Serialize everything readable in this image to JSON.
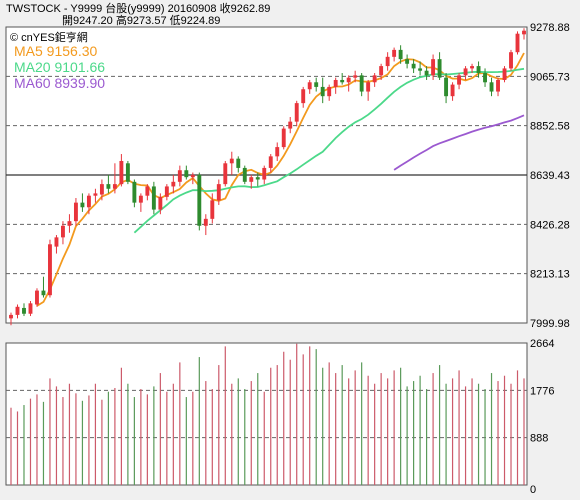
{
  "header": {
    "line1": "TWSTOCK - Y9999 台股(y9999) 20160908  收9262.89",
    "line2": "開9247.20    高9273.57    低9224.89"
  },
  "legend": {
    "watermark": "© cnYES鉅亨網",
    "ma5": "MA5 9156.30",
    "ma20": "MA20 9101.66",
    "ma60": "MA60 8939.90"
  },
  "colors": {
    "up": "#e8343c",
    "down": "#2e8b2e",
    "ma5": "#f39a1e",
    "ma20": "#4cd98a",
    "ma60": "#9b59d0",
    "vol_up": "#cc5a6a",
    "vol_down": "#5a9a5a"
  },
  "chart_data": [
    {
      "type": "candlestick",
      "symbol": "Y9999",
      "date": "20160908",
      "ohlc_last": {
        "open": 9247.2,
        "high": 9273.57,
        "low": 9224.89,
        "close": 9262.89
      },
      "y_ticks": [
        7999.98,
        8213.13,
        8426.28,
        8639.43,
        8852.58,
        9065.73,
        9278.88
      ],
      "ylim": [
        7999.98,
        9278.88
      ],
      "candles": [
        [
          8020,
          8045,
          7990,
          8035
        ],
        [
          8035,
          8080,
          8020,
          8070
        ],
        [
          8065,
          8085,
          8030,
          8040
        ],
        [
          8040,
          8095,
          8030,
          8085
        ],
        [
          8080,
          8150,
          8070,
          8140
        ],
        [
          8140,
          8200,
          8110,
          8120
        ],
        [
          8120,
          8360,
          8110,
          8340
        ],
        [
          8330,
          8380,
          8300,
          8370
        ],
        [
          8370,
          8440,
          8340,
          8420
        ],
        [
          8420,
          8470,
          8390,
          8440
        ],
        [
          8440,
          8540,
          8420,
          8520
        ],
        [
          8520,
          8560,
          8480,
          8500
        ],
        [
          8500,
          8560,
          8470,
          8550
        ],
        [
          8550,
          8580,
          8520,
          8560
        ],
        [
          8555,
          8620,
          8530,
          8600
        ],
        [
          8600,
          8640,
          8560,
          8580
        ],
        [
          8580,
          8690,
          8560,
          8600
        ],
        [
          8600,
          8730,
          8590,
          8700
        ],
        [
          8690,
          8700,
          8600,
          8610
        ],
        [
          8610,
          8620,
          8500,
          8520
        ],
        [
          8520,
          8560,
          8480,
          8550
        ],
        [
          8550,
          8600,
          8530,
          8590
        ],
        [
          8590,
          8610,
          8470,
          8490
        ],
        [
          8490,
          8560,
          8470,
          8545
        ],
        [
          8545,
          8600,
          8530,
          8590
        ],
        [
          8590,
          8640,
          8560,
          8610
        ],
        [
          8610,
          8680,
          8590,
          8660
        ],
        [
          8660,
          8680,
          8620,
          8630
        ],
        [
          8630,
          8650,
          8600,
          8640
        ],
        [
          8640,
          8650,
          8400,
          8420
        ],
        [
          8420,
          8470,
          8380,
          8450
        ],
        [
          8450,
          8560,
          8430,
          8530
        ],
        [
          8530,
          8620,
          8510,
          8600
        ],
        [
          8600,
          8700,
          8590,
          8690
        ],
        [
          8690,
          8740,
          8640,
          8710
        ],
        [
          8710,
          8720,
          8650,
          8670
        ],
        [
          8670,
          8680,
          8600,
          8610
        ],
        [
          8610,
          8640,
          8580,
          8630
        ],
        [
          8630,
          8650,
          8590,
          8620
        ],
        [
          8620,
          8680,
          8600,
          8670
        ],
        [
          8670,
          8730,
          8650,
          8720
        ],
        [
          8720,
          8780,
          8700,
          8760
        ],
        [
          8760,
          8850,
          8750,
          8840
        ],
        [
          8840,
          8890,
          8820,
          8870
        ],
        [
          8870,
          8960,
          8850,
          8950
        ],
        [
          8950,
          9020,
          8930,
          9010
        ],
        [
          9010,
          9050,
          8990,
          9040
        ],
        [
          9040,
          9060,
          9000,
          9020
        ],
        [
          9020,
          9060,
          8950,
          8980
        ],
        [
          8980,
          9030,
          8960,
          9020
        ],
        [
          9020,
          9060,
          8990,
          9050
        ],
        [
          9050,
          9080,
          9030,
          9040
        ],
        [
          9040,
          9070,
          9000,
          9060
        ],
        [
          9060,
          9090,
          9040,
          9070
        ],
        [
          9070,
          9080,
          8980,
          9000
        ],
        [
          9000,
          9050,
          8960,
          9040
        ],
        [
          9040,
          9080,
          9020,
          9070
        ],
        [
          9070,
          9120,
          9050,
          9110
        ],
        [
          9110,
          9170,
          9090,
          9150
        ],
        [
          9150,
          9190,
          9130,
          9180
        ],
        [
          9180,
          9200,
          9120,
          9140
        ],
        [
          9140,
          9160,
          9100,
          9120
        ],
        [
          9120,
          9140,
          9080,
          9100
        ],
        [
          9100,
          9130,
          9070,
          9090
        ],
        [
          9090,
          9110,
          9050,
          9070
        ],
        [
          9070,
          9160,
          9050,
          9140
        ],
        [
          9140,
          9170,
          9050,
          9060
        ],
        [
          9060,
          9080,
          8950,
          8980
        ],
        [
          8980,
          9040,
          8960,
          9030
        ],
        [
          9030,
          9080,
          9010,
          9070
        ],
        [
          9070,
          9110,
          9050,
          9100
        ],
        [
          9100,
          9120,
          9080,
          9110
        ],
        [
          9110,
          9130,
          9060,
          9080
        ],
        [
          9080,
          9100,
          9020,
          9040
        ],
        [
          9040,
          9060,
          8980,
          9000
        ],
        [
          9000,
          9060,
          8980,
          9050
        ],
        [
          9050,
          9110,
          9040,
          9100
        ],
        [
          9100,
          9180,
          9090,
          9170
        ],
        [
          9170,
          9260,
          9160,
          9250
        ],
        [
          9247.2,
          9273.57,
          9224.89,
          9262.89
        ]
      ],
      "ma5_last": 9156.3,
      "ma20_last": 9101.66,
      "ma60_last": 8939.9
    },
    {
      "type": "bar",
      "name": "volume",
      "y_ticks": [
        0,
        888,
        1776,
        2664
      ],
      "ylim": [
        0,
        2664
      ],
      "values": [
        1450,
        1380,
        1500,
        1620,
        1700,
        1560,
        2000,
        1850,
        1650,
        1900,
        1720,
        1580,
        1680,
        1900,
        1600,
        1750,
        1820,
        2200,
        1900,
        1650,
        1800,
        1700,
        1850,
        2100,
        1750,
        1900,
        2300,
        1650,
        1750,
        2400,
        1950,
        1800,
        2250,
        2600,
        1900,
        2000,
        1800,
        1950,
        2100,
        1750,
        2200,
        2250,
        2500,
        2350,
        2650,
        2450,
        2600,
        2550,
        2200,
        2300,
        2100,
        2250,
        2000,
        2150,
        2300,
        2050,
        1900,
        2100,
        2000,
        2150,
        2200,
        1850,
        1950,
        2050,
        1800,
        2100,
        2250,
        1900,
        2000,
        2150,
        1850,
        2000,
        1900,
        1800,
        2100,
        1950,
        2050,
        1900,
        2150,
        2000
      ]
    }
  ]
}
